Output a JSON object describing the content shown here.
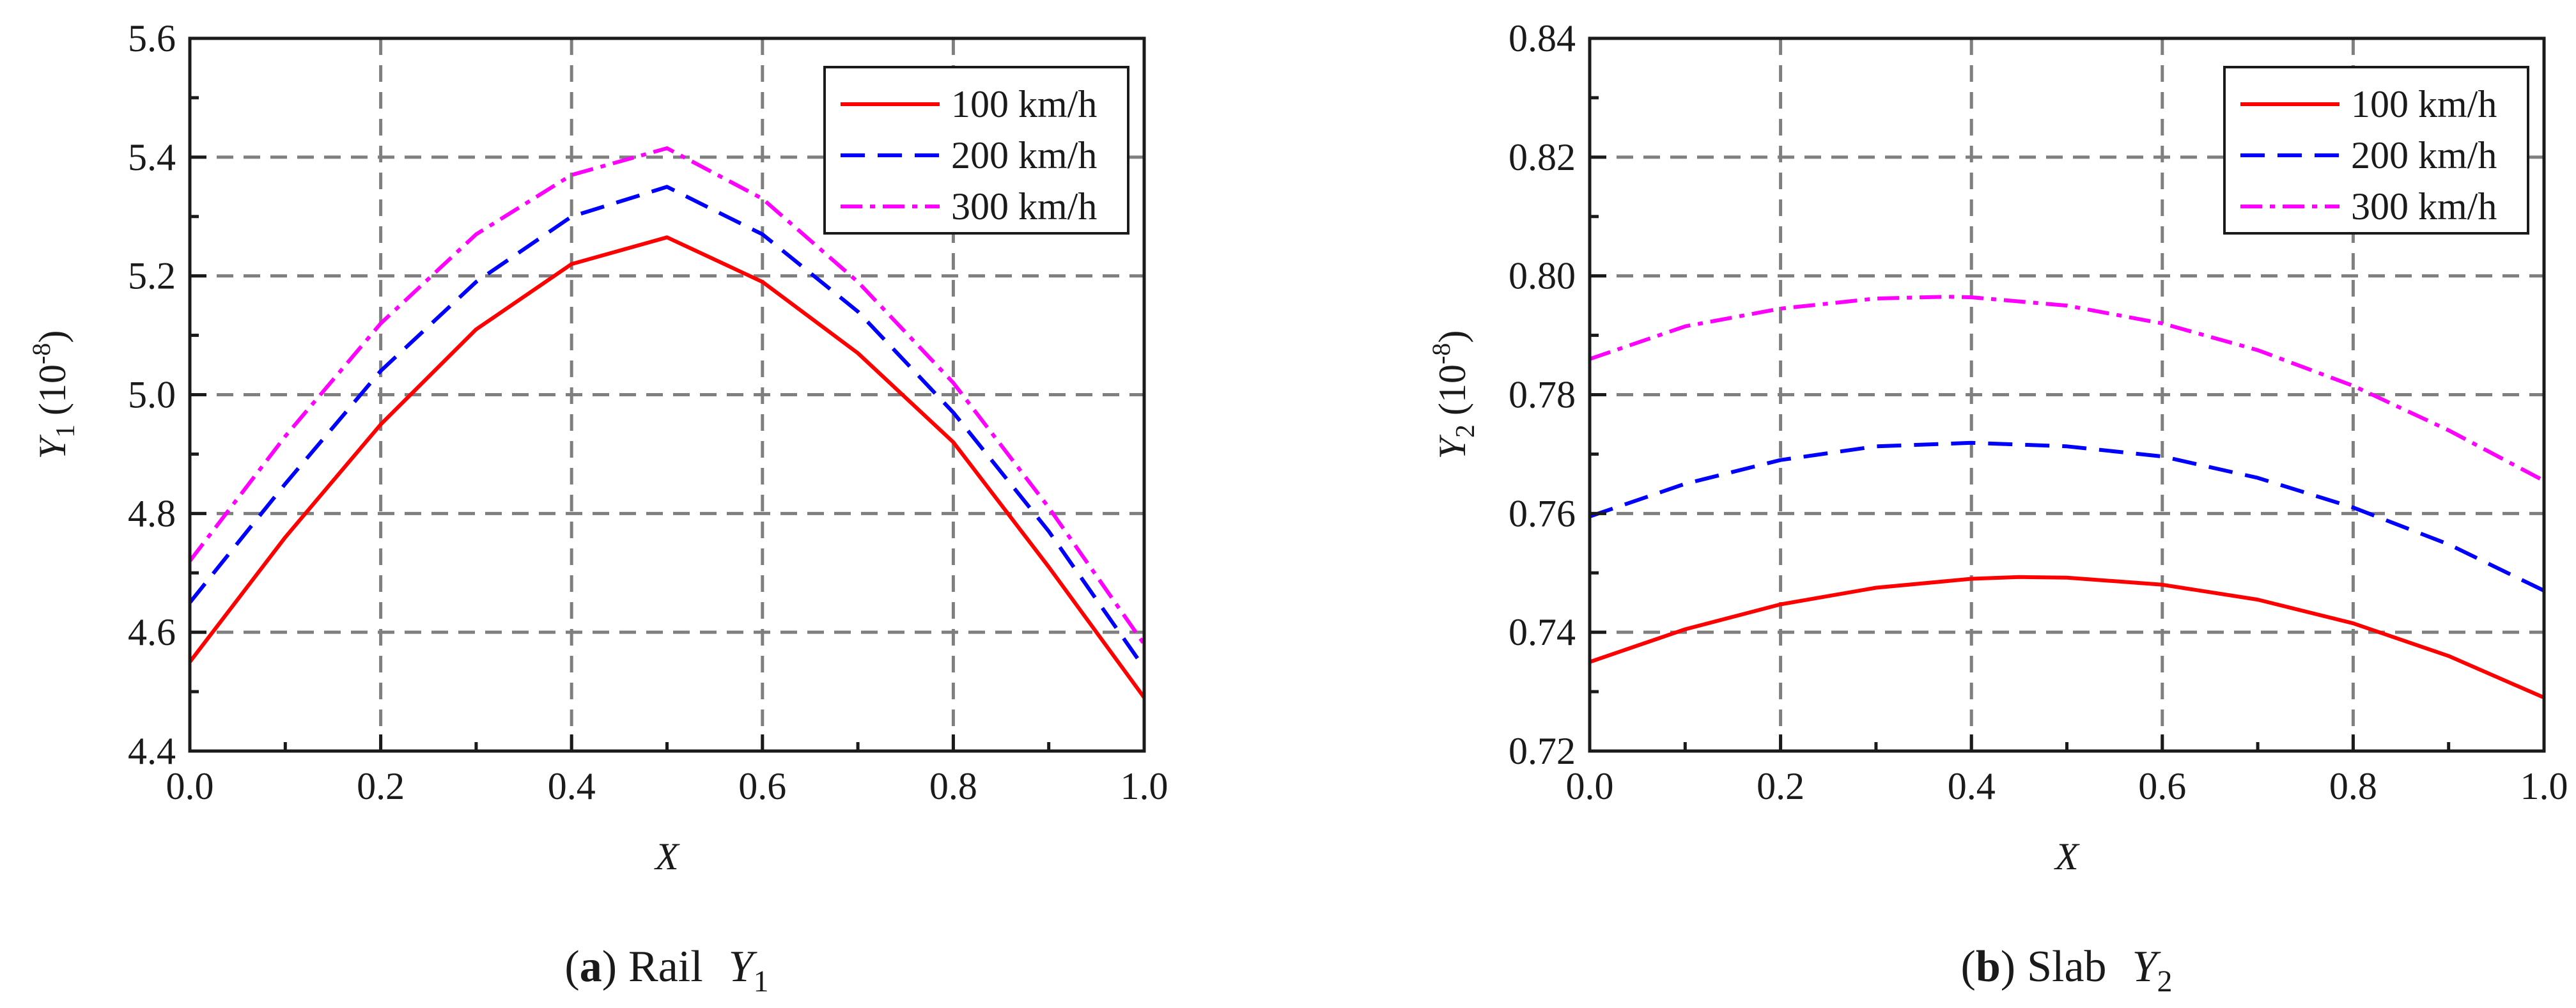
{
  "chart_data": [
    {
      "type": "line",
      "caption": {
        "letter": "a",
        "text": "Rail",
        "symbol": "Y",
        "sub": "1"
      },
      "xlabel": "X",
      "ylabel": {
        "symbol": "Y",
        "sub": "1",
        "unit": "(10",
        "exp": "-8",
        "close": ")"
      },
      "xlim": [
        0.0,
        1.0
      ],
      "ylim": [
        4.4,
        5.6
      ],
      "xticks": [
        "0.0",
        "0.2",
        "0.4",
        "0.6",
        "0.8",
        "1.0"
      ],
      "yticks": [
        "4.4",
        "4.6",
        "4.8",
        "5.0",
        "5.2",
        "5.4",
        "5.6"
      ],
      "grid": true,
      "legend_position": "top-right",
      "series": [
        {
          "name": "100 km/h",
          "color": "#ff0000",
          "dash": "solid",
          "x": [
            0.0,
            0.1,
            0.2,
            0.3,
            0.4,
            0.5,
            0.6,
            0.7,
            0.8,
            0.9,
            1.0
          ],
          "y": [
            4.55,
            4.76,
            4.95,
            5.11,
            5.22,
            5.265,
            5.19,
            5.07,
            4.92,
            4.71,
            4.49
          ]
        },
        {
          "name": "200 km/h",
          "color": "#0000ff",
          "dash": "dash",
          "x": [
            0.0,
            0.1,
            0.2,
            0.3,
            0.4,
            0.5,
            0.6,
            0.7,
            0.8,
            0.9,
            1.0
          ],
          "y": [
            4.65,
            4.85,
            5.04,
            5.19,
            5.3,
            5.35,
            5.27,
            5.14,
            4.97,
            4.77,
            4.54
          ]
        },
        {
          "name": "300 km/h",
          "color": "#ff00ff",
          "dash": "dashdot",
          "x": [
            0.0,
            0.1,
            0.2,
            0.3,
            0.4,
            0.5,
            0.6,
            0.7,
            0.8,
            0.9,
            1.0
          ],
          "y": [
            4.72,
            4.93,
            5.12,
            5.27,
            5.37,
            5.415,
            5.33,
            5.19,
            5.02,
            4.81,
            4.58
          ]
        }
      ]
    },
    {
      "type": "line",
      "caption": {
        "letter": "b",
        "text": "Slab",
        "symbol": "Y",
        "sub": "2"
      },
      "xlabel": "X",
      "ylabel": {
        "symbol": "Y",
        "sub": "2",
        "unit": "(10",
        "exp": "-8",
        "close": ")"
      },
      "xlim": [
        0.0,
        1.0
      ],
      "ylim": [
        0.72,
        0.84
      ],
      "xticks": [
        "0.0",
        "0.2",
        "0.4",
        "0.6",
        "0.8",
        "1.0"
      ],
      "yticks": [
        "0.72",
        "0.74",
        "0.76",
        "0.78",
        "0.80",
        "0.82",
        "0.84"
      ],
      "grid": true,
      "legend_position": "top-right",
      "series": [
        {
          "name": "100 km/h",
          "color": "#ff0000",
          "dash": "solid",
          "x": [
            0.0,
            0.1,
            0.2,
            0.3,
            0.4,
            0.45,
            0.5,
            0.6,
            0.7,
            0.8,
            0.9,
            1.0
          ],
          "y": [
            0.735,
            0.7405,
            0.7447,
            0.7475,
            0.749,
            0.7493,
            0.7492,
            0.748,
            0.7455,
            0.7415,
            0.736,
            0.729
          ]
        },
        {
          "name": "200 km/h",
          "color": "#0000ff",
          "dash": "dash",
          "x": [
            0.0,
            0.1,
            0.2,
            0.3,
            0.4,
            0.5,
            0.6,
            0.7,
            0.8,
            0.9,
            1.0
          ],
          "y": [
            0.7595,
            0.765,
            0.769,
            0.7713,
            0.7719,
            0.7713,
            0.7696,
            0.766,
            0.761,
            0.7548,
            0.747
          ]
        },
        {
          "name": "300 km/h",
          "color": "#ff00ff",
          "dash": "dashdot",
          "x": [
            0.0,
            0.1,
            0.2,
            0.3,
            0.375,
            0.4,
            0.5,
            0.6,
            0.7,
            0.8,
            0.9,
            1.0
          ],
          "y": [
            0.786,
            0.7915,
            0.7945,
            0.7962,
            0.7965,
            0.7964,
            0.795,
            0.792,
            0.7875,
            0.7815,
            0.774,
            0.7655
          ]
        }
      ]
    }
  ]
}
